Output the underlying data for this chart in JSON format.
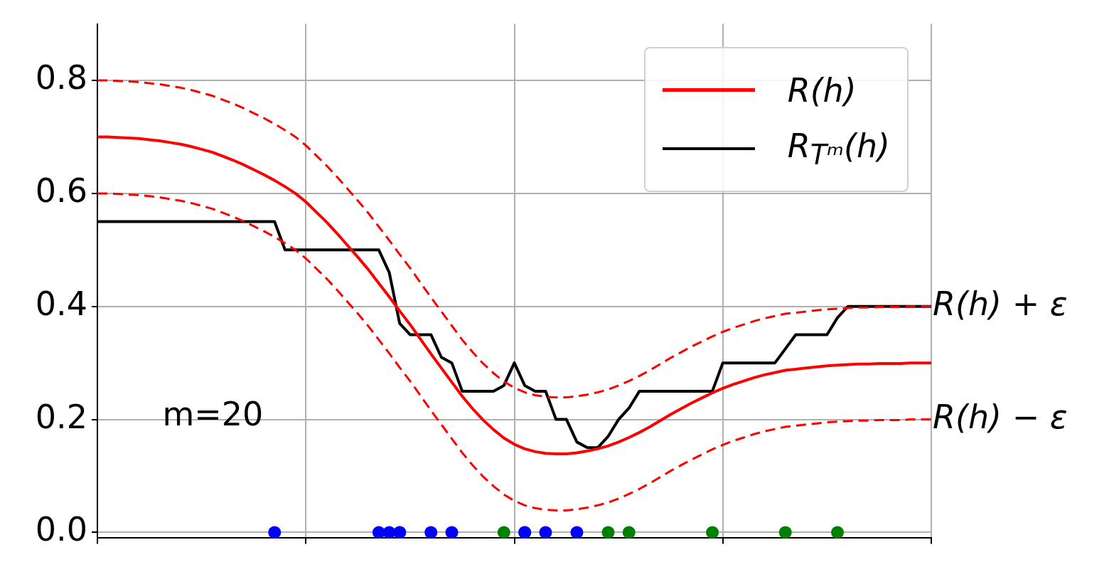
{
  "chart_data": {
    "type": "line",
    "categories": [
      null,
      null,
      null,
      null,
      null,
      null,
      null,
      null,
      null,
      null,
      null,
      null,
      null,
      null,
      null,
      null,
      null,
      null,
      null,
      null,
      null,
      null,
      null,
      null,
      null,
      null,
      null,
      null,
      null,
      null,
      null,
      null,
      null,
      null,
      null,
      null,
      null,
      null,
      null,
      null,
      null,
      null,
      null,
      null,
      null,
      null,
      null,
      null,
      null,
      null,
      null,
      null,
      null,
      null,
      null,
      null,
      null,
      null,
      null,
      null,
      null,
      null,
      null,
      null,
      null,
      null,
      null,
      null,
      null,
      null,
      null,
      null,
      null,
      null,
      null,
      null,
      null,
      null,
      null,
      null,
      null
    ],
    "series": [
      {
        "name": "R(h)",
        "type": "line",
        "color": "#ff0000",
        "line_style": "solid",
        "values": [
          0.7,
          0.7,
          0.699,
          0.698,
          0.697,
          0.695,
          0.693,
          0.69,
          0.687,
          0.683,
          0.678,
          0.673,
          0.666,
          0.659,
          0.651,
          0.642,
          0.633,
          0.623,
          0.612,
          0.6,
          0.585,
          0.567,
          0.549,
          0.529,
          0.508,
          0.487,
          0.465,
          0.441,
          0.417,
          0.392,
          0.368,
          0.342,
          0.316,
          0.291,
          0.266,
          0.241,
          0.219,
          0.199,
          0.182,
          0.167,
          0.156,
          0.148,
          0.143,
          0.14,
          0.139,
          0.139,
          0.141,
          0.144,
          0.148,
          0.153,
          0.16,
          0.168,
          0.177,
          0.187,
          0.198,
          0.209,
          0.219,
          0.229,
          0.238,
          0.247,
          0.255,
          0.262,
          0.268,
          0.274,
          0.279,
          0.283,
          0.287,
          0.289,
          0.291,
          0.293,
          0.295,
          0.296,
          0.297,
          0.298,
          0.298,
          0.299,
          0.299,
          0.299,
          0.3,
          0.3,
          0.3
        ]
      },
      {
        "type": "line",
        "color": "#ff0000",
        "line_style": "dashed",
        "values": [
          0.8,
          0.8,
          0.799,
          0.798,
          0.797,
          0.795,
          0.793,
          0.79,
          0.787,
          0.783,
          0.778,
          0.773,
          0.766,
          0.759,
          0.751,
          0.742,
          0.733,
          0.723,
          0.712,
          0.7,
          0.685,
          0.667,
          0.649,
          0.629,
          0.608,
          0.587,
          0.565,
          0.541,
          0.517,
          0.492,
          0.468,
          0.442,
          0.416,
          0.391,
          0.366,
          0.341,
          0.319,
          0.299,
          0.282,
          0.267,
          0.256,
          0.248,
          0.243,
          0.24,
          0.239,
          0.239,
          0.241,
          0.244,
          0.248,
          0.253,
          0.26,
          0.268,
          0.277,
          0.287,
          0.298,
          0.309,
          0.319,
          0.329,
          0.338,
          0.347,
          0.355,
          0.362,
          0.368,
          0.374,
          0.379,
          0.383,
          0.387,
          0.389,
          0.391,
          0.393,
          0.395,
          0.396,
          0.397,
          0.398,
          0.398,
          0.399,
          0.399,
          0.399,
          0.4,
          0.4,
          0.4
        ]
      },
      {
        "type": "line",
        "color": "#ff0000",
        "line_style": "dashed",
        "values": [
          0.6,
          0.6,
          0.599,
          0.598,
          0.597,
          0.595,
          0.593,
          0.59,
          0.587,
          0.583,
          0.578,
          0.573,
          0.566,
          0.559,
          0.551,
          0.542,
          0.533,
          0.523,
          0.512,
          0.5,
          0.485,
          0.467,
          0.449,
          0.429,
          0.408,
          0.387,
          0.365,
          0.341,
          0.317,
          0.292,
          0.268,
          0.242,
          0.216,
          0.191,
          0.166,
          0.141,
          0.119,
          0.099,
          0.082,
          0.067,
          0.056,
          0.048,
          0.043,
          0.04,
          0.039,
          0.039,
          0.041,
          0.044,
          0.048,
          0.053,
          0.06,
          0.068,
          0.077,
          0.087,
          0.098,
          0.109,
          0.119,
          0.129,
          0.138,
          0.147,
          0.155,
          0.162,
          0.168,
          0.174,
          0.179,
          0.183,
          0.187,
          0.189,
          0.191,
          0.193,
          0.195,
          0.196,
          0.197,
          0.198,
          0.198,
          0.199,
          0.199,
          0.199,
          0.2,
          0.2,
          0.2
        ]
      },
      {
        "name": "R$_{Tᵐ}$(h)",
        "type": "line",
        "color": "#000000",
        "line_style": "solid",
        "values": [
          0.55,
          0.55,
          0.55,
          0.55,
          0.55,
          0.55,
          0.55,
          0.55,
          0.55,
          0.55,
          0.55,
          0.55,
          0.55,
          0.55,
          0.55,
          0.55,
          0.55,
          0.55,
          0.5,
          0.5,
          0.5,
          0.5,
          0.5,
          0.5,
          0.5,
          0.5,
          0.5,
          0.5,
          0.46,
          0.37,
          0.35,
          0.35,
          0.35,
          0.31,
          0.3,
          0.25,
          0.25,
          0.25,
          0.25,
          0.26,
          0.3,
          0.26,
          0.25,
          0.25,
          0.2,
          0.2,
          0.16,
          0.15,
          0.15,
          0.17,
          0.2,
          0.22,
          0.25,
          0.25,
          0.25,
          0.25,
          0.25,
          0.25,
          0.25,
          0.25,
          0.3,
          0.3,
          0.3,
          0.3,
          0.3,
          0.3,
          0.325,
          0.35,
          0.35,
          0.35,
          0.35,
          0.38,
          0.4,
          0.4,
          0.4,
          0.4,
          0.4,
          0.4,
          0.4,
          0.4,
          0.4
        ]
      },
      {
        "type": "scatter",
        "color": "#0000ff",
        "marker": "circle",
        "values": [
          null,
          null,
          null,
          null,
          null,
          null,
          null,
          null,
          null,
          null,
          null,
          null,
          null,
          null,
          null,
          null,
          null,
          0,
          null,
          null,
          null,
          null,
          null,
          null,
          null,
          null,
          null,
          0,
          0,
          0,
          null,
          null,
          0,
          null,
          0,
          null,
          null,
          null,
          null,
          null,
          null,
          0,
          null,
          0,
          null,
          null,
          0,
          null,
          null,
          null,
          null,
          null,
          null,
          null,
          null,
          null,
          null,
          null,
          null,
          null,
          null,
          null,
          null,
          null,
          null,
          null,
          null,
          null,
          null,
          null,
          null,
          null,
          null,
          null,
          null,
          null,
          null,
          null,
          null,
          null,
          null
        ]
      },
      {
        "type": "scatter",
        "color": "#008000",
        "marker": "circle",
        "values": [
          null,
          null,
          null,
          null,
          null,
          null,
          null,
          null,
          null,
          null,
          null,
          null,
          null,
          null,
          null,
          null,
          null,
          null,
          null,
          null,
          null,
          null,
          null,
          null,
          null,
          null,
          null,
          null,
          null,
          0,
          null,
          null,
          null,
          null,
          null,
          null,
          null,
          null,
          null,
          0,
          null,
          0,
          null,
          null,
          null,
          null,
          null,
          null,
          null,
          0,
          null,
          0,
          null,
          null,
          null,
          null,
          null,
          null,
          null,
          0,
          null,
          null,
          null,
          null,
          null,
          null,
          0,
          null,
          null,
          null,
          null,
          0,
          null,
          null,
          null,
          null,
          null,
          null,
          null,
          null,
          null
        ]
      }
    ],
    "ylim": [
      -0.01,
      0.9
    ],
    "yticks": [
      {
        "value": 0,
        "label": "0.0"
      },
      {
        "value": 0.2,
        "label": "0.2"
      },
      {
        "value": 0.4,
        "label": "0.4"
      },
      {
        "value": 0.6,
        "label": "0.6"
      },
      {
        "value": 0.8,
        "label": "0.8"
      }
    ],
    "tick_labels": "y",
    "grid": true,
    "legend": "top right",
    "annotations": [
      "m=20",
      "R(h) + ε",
      "R(h) − ε"
    ]
  }
}
